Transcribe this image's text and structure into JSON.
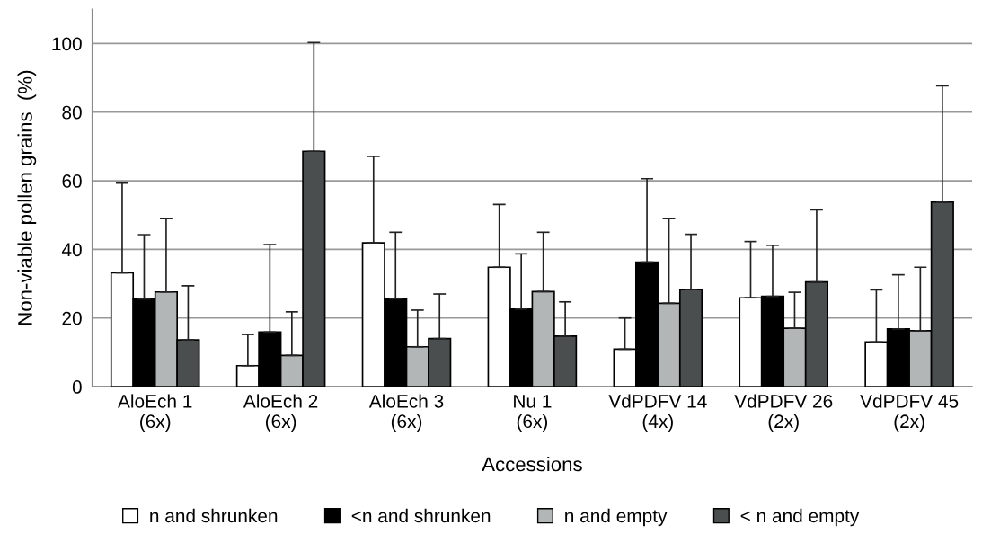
{
  "chart_data": {
    "type": "bar",
    "xlabel": "Accessions",
    "ylabel": "Non-viable pollen grains  (%)",
    "categories": [
      "AloEch 1\n(6x)",
      "AloEch 2\n(6x)",
      "AloEch 3\n(6x)",
      "Nu 1\n(6x)",
      "VdPDFV 14\n(4x)",
      "VdPDFV 26\n(2x)",
      "VdPDFV 45\n(2x)"
    ],
    "series": [
      {
        "name": "n and shrunken",
        "color": "#ffffff",
        "values": [
          33.2,
          6.1,
          41.9,
          34.8,
          10.9,
          25.9,
          13.0
        ],
        "errors": [
          [
            33.2,
            59.3
          ],
          [
            6.1,
            15.2
          ],
          [
            41.9,
            67.1
          ],
          [
            34.8,
            53.1
          ],
          [
            10.9,
            20.0
          ],
          [
            25.9,
            42.3
          ],
          [
            13.0,
            28.2
          ]
        ]
      },
      {
        "name": "<n and shrunken",
        "color": "#000000",
        "values": [
          25.5,
          15.9,
          25.6,
          22.6,
          36.3,
          26.3,
          16.8
        ],
        "errors": [
          [
            25.5,
            44.3
          ],
          [
            15.9,
            41.4
          ],
          [
            25.6,
            45.0
          ],
          [
            22.6,
            38.7
          ],
          [
            36.3,
            60.6
          ],
          [
            26.3,
            41.2
          ],
          [
            16.8,
            32.6
          ]
        ]
      },
      {
        "name": "n and empty",
        "color": "#b3b6b6",
        "values": [
          27.6,
          9.1,
          11.6,
          27.7,
          24.3,
          17.0,
          16.3
        ],
        "errors": [
          [
            27.6,
            49.0
          ],
          [
            9.1,
            21.8
          ],
          [
            11.6,
            22.3
          ],
          [
            27.7,
            45.0
          ],
          [
            24.3,
            49.0
          ],
          [
            17.0,
            27.5
          ],
          [
            16.3,
            34.8
          ]
        ]
      },
      {
        "name": "< n and empty",
        "color": "#4a4e4f",
        "values": [
          13.6,
          68.6,
          14.0,
          14.7,
          28.3,
          30.5,
          53.8
        ],
        "errors": [
          [
            13.6,
            29.4
          ],
          [
            68.6,
            100.3
          ],
          [
            14.0,
            27.0
          ],
          [
            14.7,
            24.7
          ],
          [
            28.3,
            44.4
          ],
          [
            30.5,
            51.5
          ],
          [
            53.8,
            87.7
          ]
        ]
      }
    ],
    "ylim": [
      0,
      110
    ],
    "yticks": [
      0,
      20,
      40,
      60,
      80,
      100
    ],
    "grid": "y",
    "legend": "bottom"
  }
}
